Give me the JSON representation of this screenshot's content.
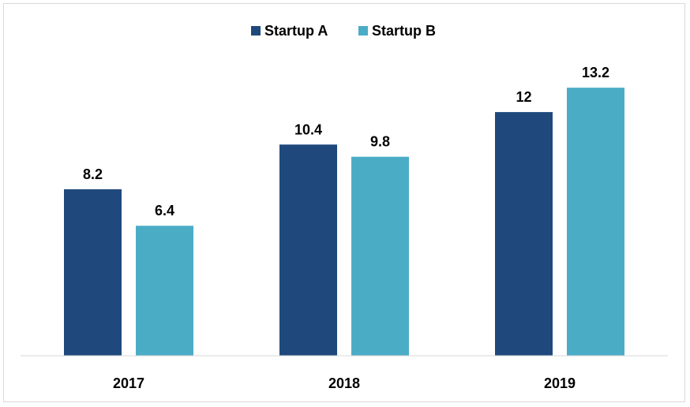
{
  "chart_data": {
    "type": "bar",
    "title": "",
    "xlabel": "",
    "ylabel": "",
    "categories": [
      "2017",
      "2018",
      "2019"
    ],
    "series": [
      {
        "name": "Startup A",
        "values": [
          8.2,
          10.4,
          12
        ],
        "color": "#1f497d"
      },
      {
        "name": "Startup B",
        "values": [
          6.4,
          9.8,
          13.2
        ],
        "color": "#4bacc6"
      }
    ],
    "ylim": [
      0,
      14.8
    ],
    "grid": false,
    "legend_position": "top-center",
    "data_labels": true
  }
}
